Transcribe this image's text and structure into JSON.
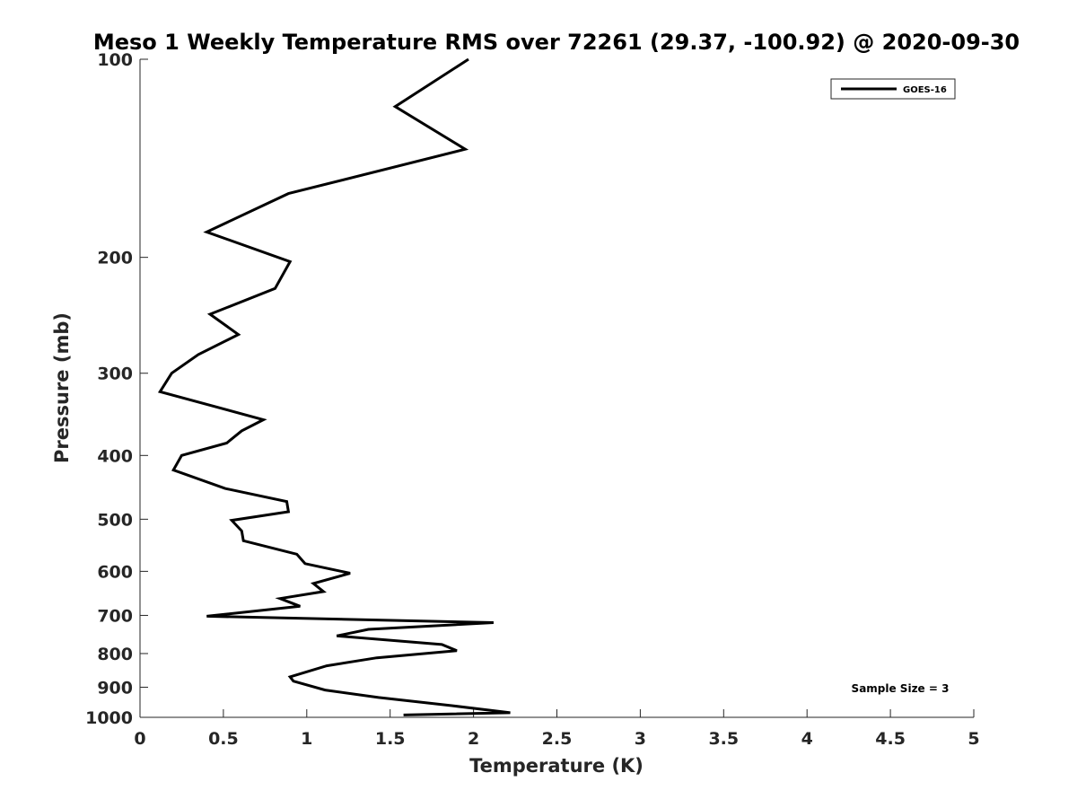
{
  "chart_data": {
    "type": "line",
    "title": "Meso 1 Weekly Temperature RMS over 72261 (29.37, -100.92) @ 2020-09-30",
    "xlabel": "Temperature (K)",
    "ylabel": "Pressure (mb)",
    "xlim": [
      0,
      5
    ],
    "ylim": [
      1000,
      100
    ],
    "y_scale": "log",
    "grid": false,
    "legend_position": "top-right",
    "x_ticks": [
      0,
      0.5,
      1,
      1.5,
      2,
      2.5,
      3,
      3.5,
      4,
      4.5,
      5
    ],
    "x_tick_labels": [
      "0",
      "0.5",
      "1",
      "1.5",
      "2",
      "2.5",
      "3",
      "3.5",
      "4",
      "4.5",
      "5"
    ],
    "y_ticks": [
      100,
      200,
      300,
      400,
      500,
      600,
      700,
      800,
      900,
      1000
    ],
    "y_tick_labels": [
      "100",
      "200",
      "300",
      "400",
      "500",
      "600",
      "700",
      "800",
      "900",
      "1000"
    ],
    "series": [
      {
        "name": "GOES-16",
        "color": "#000000",
        "points": [
          [
            1.97,
            100
          ],
          [
            1.53,
            118
          ],
          [
            1.95,
            137
          ],
          [
            0.89,
            160
          ],
          [
            0.4,
            183
          ],
          [
            0.9,
            203
          ],
          [
            0.81,
            223
          ],
          [
            0.42,
            244
          ],
          [
            0.59,
            262
          ],
          [
            0.35,
            281
          ],
          [
            0.19,
            300
          ],
          [
            0.12,
            320
          ],
          [
            0.74,
            353
          ],
          [
            0.61,
            367
          ],
          [
            0.52,
            383
          ],
          [
            0.25,
            400
          ],
          [
            0.2,
            421
          ],
          [
            0.51,
            449
          ],
          [
            0.88,
            470
          ],
          [
            0.89,
            487
          ],
          [
            0.55,
            502
          ],
          [
            0.61,
            521
          ],
          [
            0.62,
            539
          ],
          [
            0.94,
            565
          ],
          [
            0.99,
            584
          ],
          [
            1.26,
            604
          ],
          [
            1.04,
            626
          ],
          [
            1.1,
            644
          ],
          [
            0.84,
            660
          ],
          [
            0.96,
            678
          ],
          [
            0.4,
            702
          ],
          [
            2.12,
            718
          ],
          [
            1.37,
            735
          ],
          [
            1.18,
            752
          ],
          [
            1.81,
            775
          ],
          [
            1.9,
            792
          ],
          [
            1.42,
            812
          ],
          [
            1.12,
            835
          ],
          [
            0.9,
            868
          ],
          [
            0.92,
            881
          ],
          [
            1.11,
            909
          ],
          [
            1.43,
            933
          ],
          [
            1.87,
            960
          ],
          [
            2.22,
            984
          ],
          [
            1.58,
            992
          ]
        ]
      }
    ],
    "annotations": [
      {
        "text": "Sample Size = 3",
        "position": "bottom-right"
      }
    ]
  }
}
